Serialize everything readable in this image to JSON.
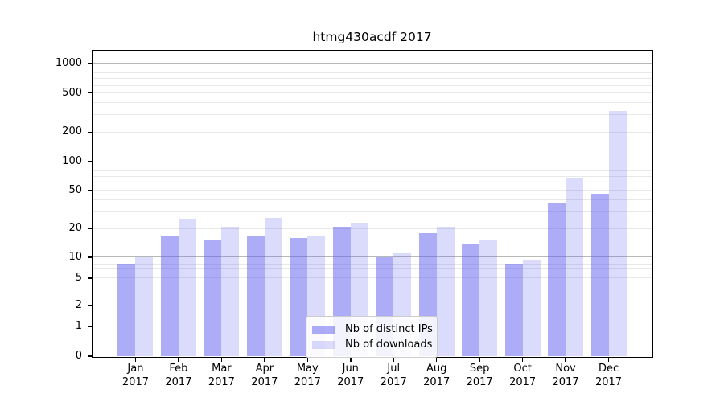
{
  "chart_data": {
    "type": "bar",
    "title": "htmg430acdf 2017",
    "categories": [
      "Jan",
      "Feb",
      "Mar",
      "Apr",
      "May",
      "Jun",
      "Jul",
      "Aug",
      "Sep",
      "Oct",
      "Nov",
      "Dec"
    ],
    "x_tick_year": "2017",
    "series": [
      {
        "name": "Nb of distinct IPs",
        "color": "rgba(90,90,240,0.5)",
        "values": [
          8,
          17,
          15,
          17,
          16,
          21,
          10,
          18,
          14,
          8,
          37,
          46
        ]
      },
      {
        "name": "Nb of downloads",
        "color": "rgba(90,90,240,0.22)",
        "values": [
          10,
          25,
          21,
          26,
          17,
          23,
          11,
          21,
          15,
          9,
          68,
          330
        ]
      }
    ],
    "ylabel": "",
    "xlabel": "",
    "y_ticks": [
      0,
      1,
      2,
      5,
      10,
      20,
      50,
      100,
      200,
      500,
      1000
    ],
    "y_minor_gridlines": [
      2,
      3,
      4,
      5,
      6,
      7,
      8,
      9,
      20,
      30,
      40,
      50,
      60,
      70,
      80,
      90,
      200,
      300,
      400,
      500,
      600,
      700,
      800,
      900
    ],
    "y_major_gridlines": [
      1,
      10,
      100,
      1000
    ],
    "yscale": "symlog",
    "ylim": [
      0,
      1350
    ],
    "grid": "horizontal, major and minor",
    "legend_position": "lower center",
    "colors": {
      "bar_base": "#5a5af0",
      "major_grid": "#b8b8b8",
      "minor_grid": "#e8e8e8",
      "frame": "#000000",
      "background": "#ffffff"
    }
  }
}
